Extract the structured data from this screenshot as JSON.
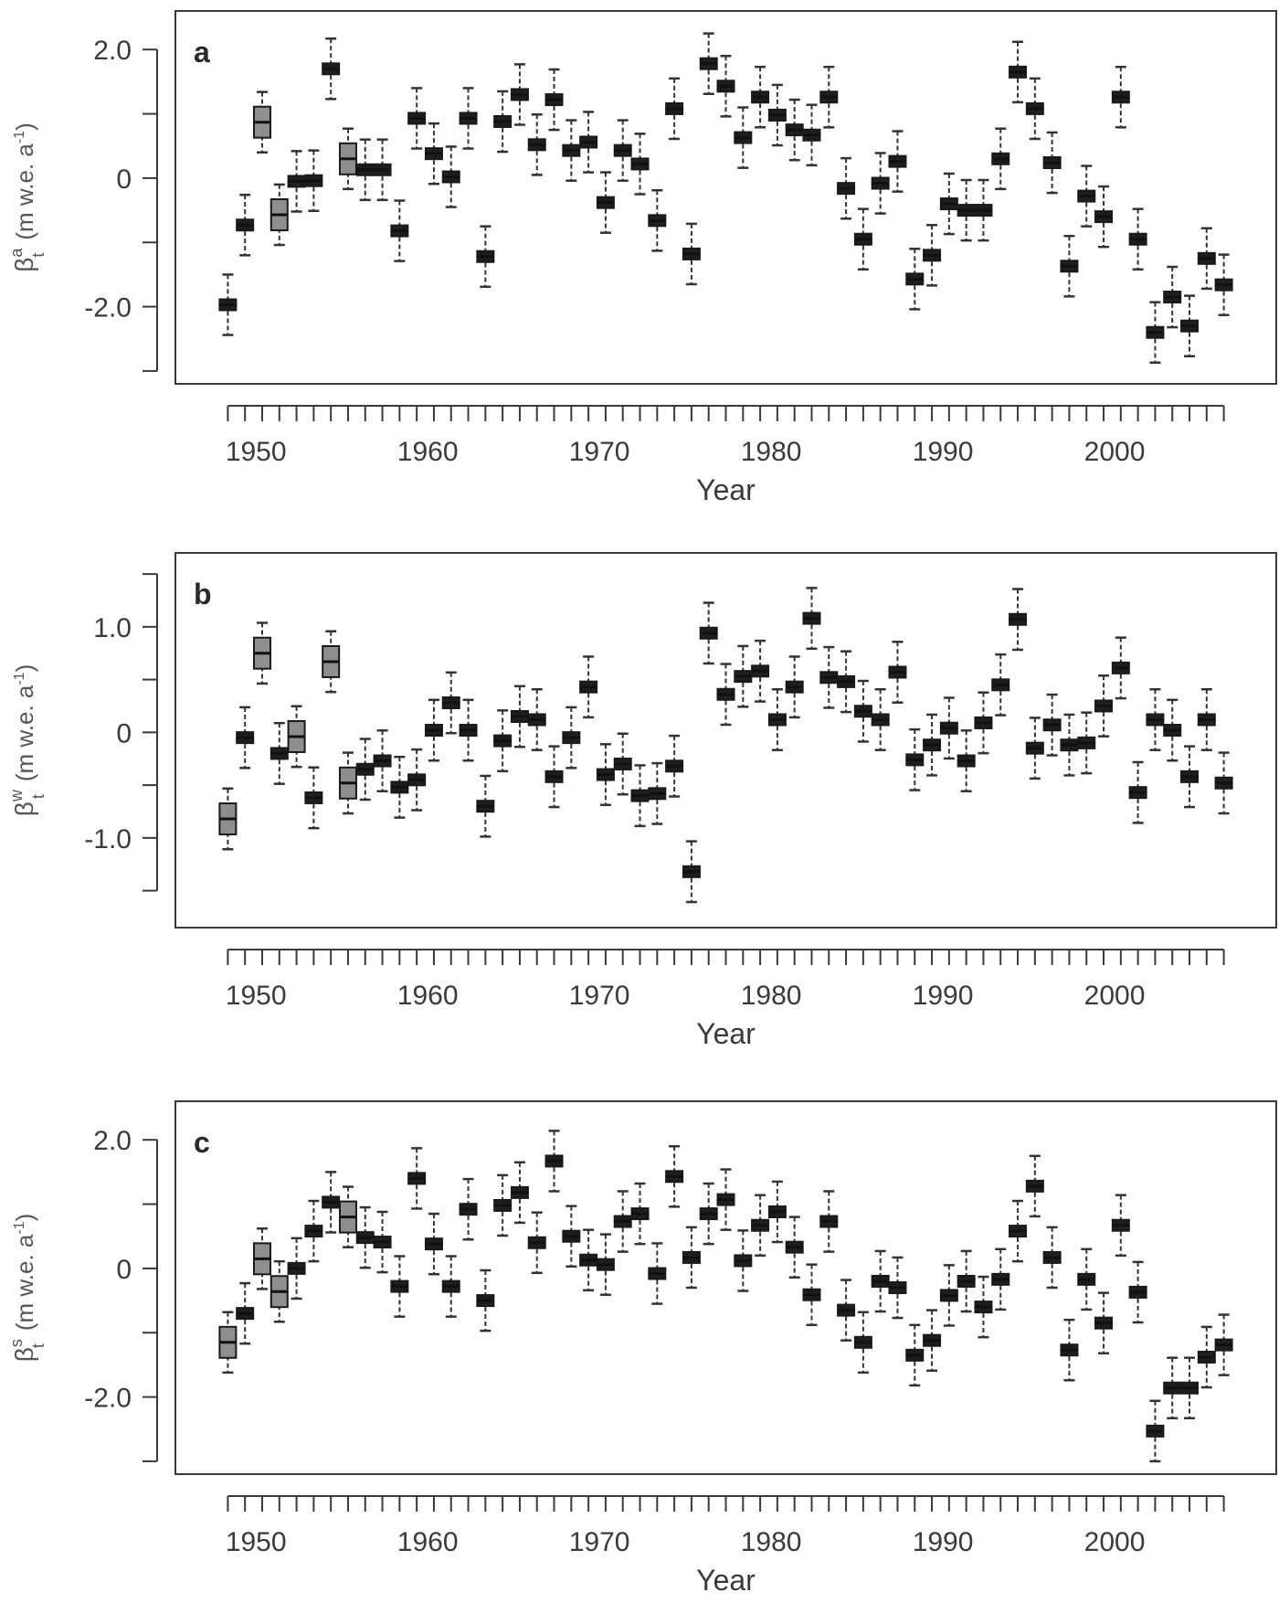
{
  "chart_data": [
    {
      "type": "boxplot",
      "panel_label": "a",
      "ylabel": {
        "base": "β",
        "sup": "a",
        "sub": "t",
        "units": "(m w.e. a",
        "units_sup": "-1",
        "units_close": ")"
      },
      "xlabel": "Year",
      "xlim": [
        1946,
        2010
      ],
      "ylim": [
        -3.2,
        2.6
      ],
      "yticks": [
        -3,
        -2,
        -1,
        0,
        1,
        2
      ],
      "ytick_labels": [
        "",
        "-2.0",
        "",
        "0",
        "",
        "2.0"
      ],
      "xticks": [
        1950,
        1960,
        1970,
        1980,
        1990,
        2000
      ],
      "xtick_labels": [
        "1950",
        "1960",
        "1970",
        "1980",
        "1990",
        "2000"
      ],
      "grey_years": [
        1951,
        1952,
        1956
      ],
      "years": [
        1949,
        1950,
        1951,
        1952,
        1953,
        1954,
        1955,
        1956,
        1957,
        1958,
        1959,
        1960,
        1961,
        1962,
        1963,
        1964,
        1965,
        1966,
        1967,
        1968,
        1969,
        1970,
        1971,
        1972,
        1973,
        1974,
        1975,
        1976,
        1977,
        1978,
        1979,
        1980,
        1981,
        1982,
        1983,
        1984,
        1985,
        1986,
        1987,
        1988,
        1989,
        1990,
        1991,
        1992,
        1993,
        1994,
        1995,
        1996,
        1997,
        1998,
        1999,
        2000,
        2001,
        2002,
        2003,
        2004,
        2005,
        2006,
        2007
      ],
      "values": [
        -1.97,
        -0.73,
        0.87,
        -0.57,
        -0.05,
        -0.04,
        1.7,
        0.3,
        0.13,
        0.13,
        -0.82,
        0.93,
        0.38,
        0.02,
        0.93,
        -1.22,
        0.88,
        1.3,
        0.52,
        1.22,
        0.43,
        0.56,
        -0.38,
        0.43,
        0.22,
        -0.66,
        1.08,
        -1.18,
        1.78,
        1.43,
        0.63,
        1.26,
        0.98,
        0.75,
        0.67,
        1.26,
        -0.16,
        -0.95,
        -0.08,
        0.26,
        -1.57,
        -1.2,
        -0.4,
        -0.5,
        -0.5,
        0.3,
        1.65,
        1.08,
        0.24,
        -1.37,
        -0.28,
        -0.6,
        1.26,
        -0.95,
        -2.4,
        -1.85,
        -2.3,
        -1.25,
        -1.66
      ]
    },
    {
      "type": "boxplot",
      "panel_label": "b",
      "ylabel": {
        "base": "β",
        "sup": "w",
        "sub": "t",
        "units": "(m w.e. a",
        "units_sup": "-1",
        "units_close": ")"
      },
      "xlabel": "Year",
      "xlim": [
        1946,
        2010
      ],
      "ylim": [
        -1.85,
        1.7
      ],
      "yticks": [
        -1.5,
        -1,
        -0.5,
        0,
        0.5,
        1,
        1.5
      ],
      "ytick_labels": [
        "",
        "-1.0",
        "",
        "0",
        "",
        "1.0",
        ""
      ],
      "xticks": [
        1950,
        1960,
        1970,
        1980,
        1990,
        2000
      ],
      "xtick_labels": [
        "1950",
        "1960",
        "1970",
        "1980",
        "1990",
        "2000"
      ],
      "grey_years": [
        1949,
        1951,
        1953,
        1955,
        1956
      ],
      "years": [
        1949,
        1950,
        1951,
        1952,
        1953,
        1954,
        1955,
        1956,
        1957,
        1958,
        1959,
        1960,
        1961,
        1962,
        1963,
        1964,
        1965,
        1966,
        1967,
        1968,
        1969,
        1970,
        1971,
        1972,
        1973,
        1974,
        1975,
        1976,
        1977,
        1978,
        1979,
        1980,
        1981,
        1982,
        1983,
        1984,
        1985,
        1986,
        1987,
        1988,
        1989,
        1990,
        1991,
        1992,
        1993,
        1994,
        1995,
        1996,
        1997,
        1998,
        1999,
        2000,
        2001,
        2002,
        2003,
        2004,
        2005,
        2006,
        2007
      ],
      "values": [
        -0.82,
        -0.05,
        0.75,
        -0.2,
        -0.04,
        -0.62,
        0.67,
        -0.48,
        -0.35,
        -0.27,
        -0.52,
        -0.45,
        0.02,
        0.28,
        0.02,
        -0.7,
        -0.08,
        0.15,
        0.12,
        -0.42,
        -0.05,
        0.43,
        -0.4,
        -0.3,
        -0.6,
        -0.58,
        -0.32,
        -1.32,
        0.94,
        0.36,
        0.53,
        0.58,
        0.12,
        0.43,
        1.08,
        0.52,
        0.48,
        0.2,
        0.12,
        0.57,
        -0.26,
        -0.12,
        0.04,
        -0.27,
        0.09,
        0.45,
        1.07,
        -0.15,
        0.07,
        -0.12,
        -0.1,
        0.25,
        0.61,
        -0.57,
        0.12,
        0.02,
        -0.42,
        0.12,
        -0.48
      ]
    },
    {
      "type": "boxplot",
      "panel_label": "c",
      "ylabel": {
        "base": "β",
        "sup": "s",
        "sub": "t",
        "units": "(m w.e. a",
        "units_sup": "-1",
        "units_close": ")"
      },
      "xlabel": "Year",
      "xlim": [
        1946,
        2010
      ],
      "ylim": [
        -3.2,
        2.6
      ],
      "yticks": [
        -3,
        -2,
        -1,
        0,
        1,
        2
      ],
      "ytick_labels": [
        "",
        "-2.0",
        "",
        "0",
        "",
        "2.0"
      ],
      "xticks": [
        1950,
        1960,
        1970,
        1980,
        1990,
        2000
      ],
      "xtick_labels": [
        "1950",
        "1960",
        "1970",
        "1980",
        "1990",
        "2000"
      ],
      "grey_years": [
        1949,
        1951,
        1952,
        1956
      ],
      "years": [
        1949,
        1950,
        1951,
        1952,
        1953,
        1954,
        1955,
        1956,
        1957,
        1958,
        1959,
        1960,
        1961,
        1962,
        1963,
        1964,
        1965,
        1966,
        1967,
        1968,
        1969,
        1970,
        1971,
        1972,
        1973,
        1974,
        1975,
        1976,
        1977,
        1978,
        1979,
        1980,
        1981,
        1982,
        1983,
        1984,
        1985,
        1986,
        1987,
        1988,
        1989,
        1990,
        1991,
        1992,
        1993,
        1994,
        1995,
        1996,
        1997,
        1998,
        1999,
        2000,
        2001,
        2002,
        2003,
        2004,
        2005,
        2006,
        2007
      ],
      "values": [
        -1.15,
        -0.7,
        0.15,
        -0.36,
        0.0,
        0.58,
        1.03,
        0.8,
        0.48,
        0.41,
        -0.28,
        1.4,
        0.38,
        -0.28,
        0.92,
        -0.5,
        0.98,
        1.18,
        0.4,
        1.67,
        0.5,
        0.13,
        0.06,
        0.73,
        0.85,
        -0.08,
        1.43,
        0.17,
        0.85,
        1.07,
        0.12,
        0.67,
        0.88,
        0.33,
        -0.41,
        0.73,
        -0.65,
        -1.15,
        -0.2,
        -0.3,
        -1.35,
        -1.12,
        -0.42,
        -0.2,
        -0.6,
        -0.17,
        0.58,
        1.28,
        0.17,
        -1.27,
        -0.17,
        -0.85,
        0.67,
        -0.37,
        -2.53,
        -1.86,
        -1.86,
        -1.38,
        -1.19
      ]
    }
  ]
}
